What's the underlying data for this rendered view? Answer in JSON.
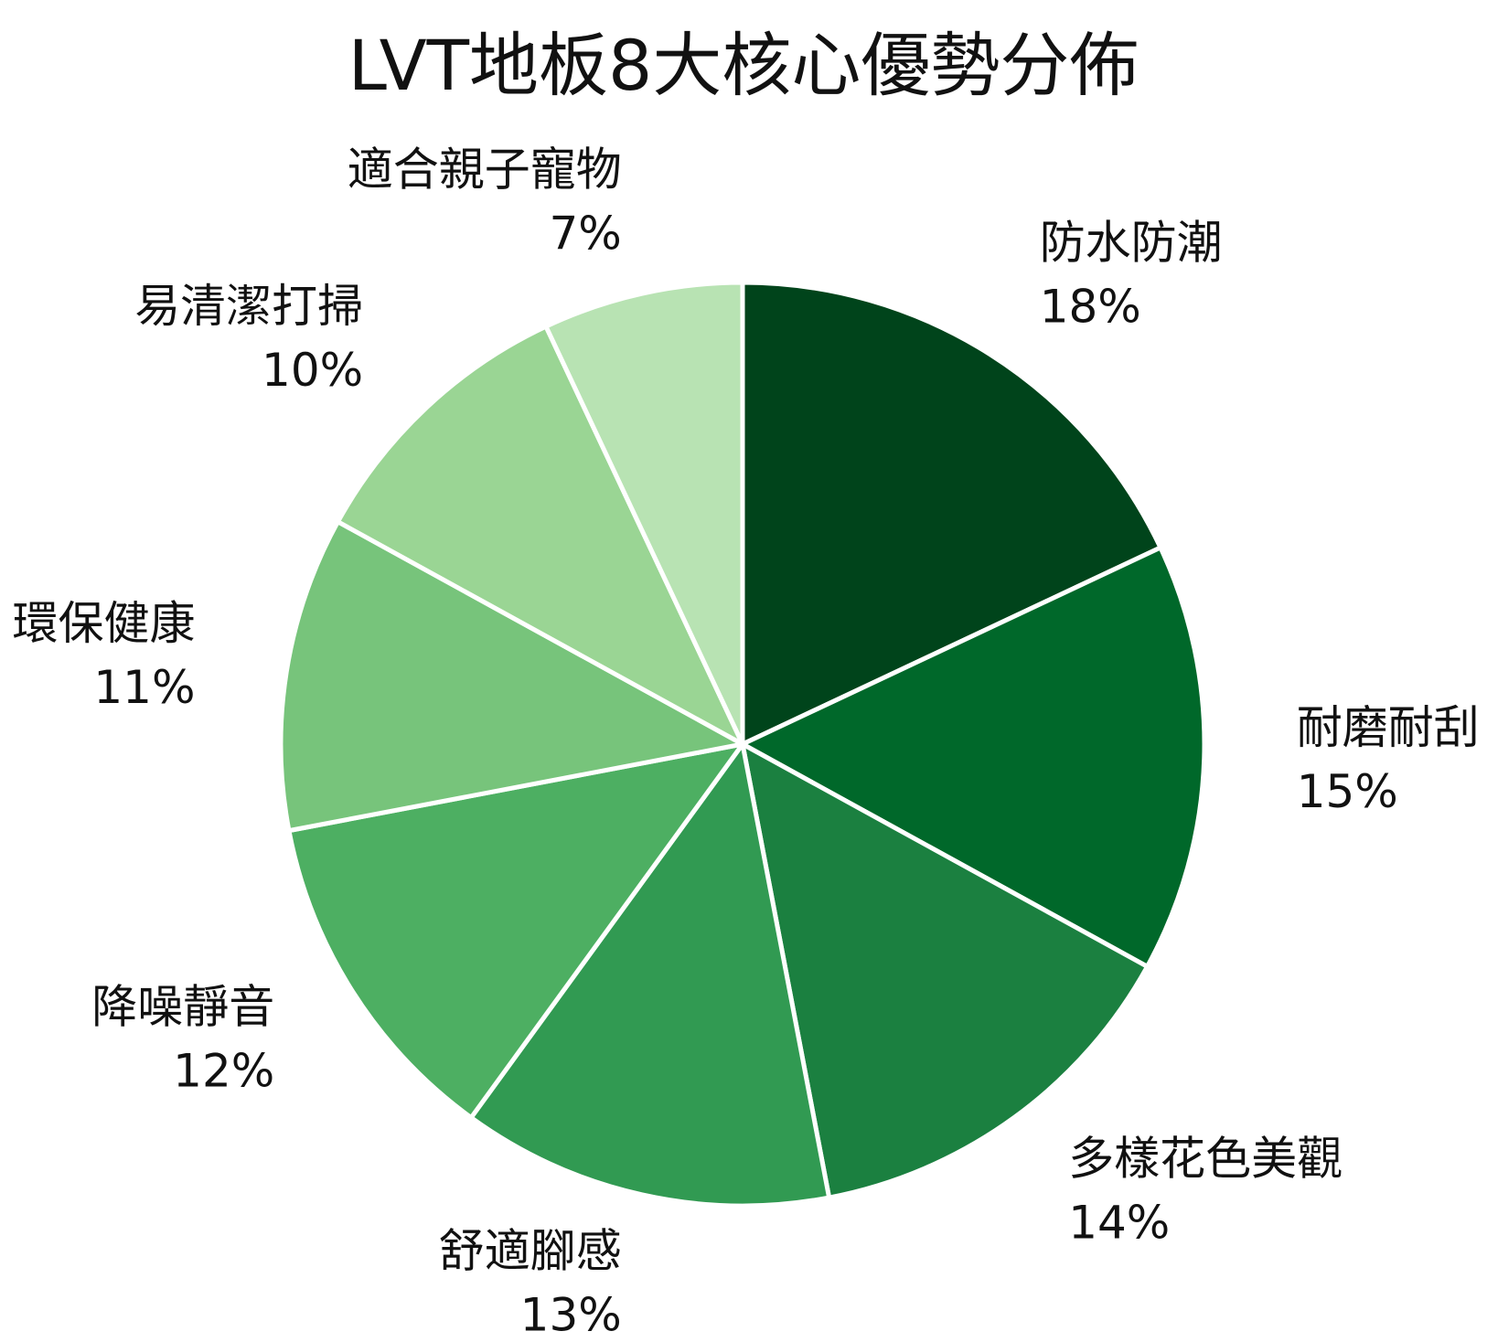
{
  "chart_data": {
    "type": "pie",
    "title": "LVT地板8大核心優勢分佈",
    "start_angle_deg": 90,
    "direction": "clockwise",
    "slices": [
      {
        "label": "防水防潮",
        "value": 18,
        "value_label": "18%",
        "color": "#00441b"
      },
      {
        "label": "耐磨耐刮",
        "value": 15,
        "value_label": "15%",
        "color": "#00682a"
      },
      {
        "label": "多樣花色美觀",
        "value": 14,
        "value_label": "14%",
        "color": "#1b8040"
      },
      {
        "label": "舒適腳感",
        "value": 13,
        "value_label": "13%",
        "color": "#319a52"
      },
      {
        "label": "降噪靜音",
        "value": 12,
        "value_label": "12%",
        "color": "#4daf62"
      },
      {
        "label": "環保健康",
        "value": 11,
        "value_label": "11%",
        "color": "#77c47b"
      },
      {
        "label": "易清潔打掃",
        "value": 10,
        "value_label": "10%",
        "color": "#9ad594"
      },
      {
        "label": "適合親子寵物",
        "value": 7,
        "value_label": "7%",
        "color": "#b8e3b3"
      }
    ]
  }
}
